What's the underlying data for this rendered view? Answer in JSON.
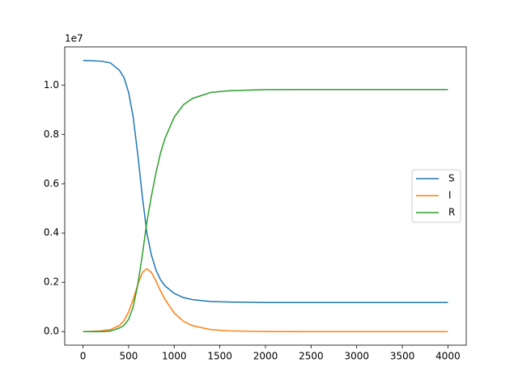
{
  "chart_data": {
    "type": "line",
    "y_offset_label": "1e7",
    "x": [
      0,
      100,
      200,
      300,
      400,
      450,
      500,
      550,
      600,
      650,
      700,
      750,
      800,
      850,
      900,
      1000,
      1100,
      1200,
      1400,
      1600,
      2000,
      2500,
      3000,
      3500,
      4000
    ],
    "series": [
      {
        "name": "S",
        "color": "#1f77b4",
        "values": [
          1.1,
          1.099,
          1.097,
          1.09,
          1.06,
          1.03,
          0.97,
          0.87,
          0.72,
          0.55,
          0.4,
          0.31,
          0.25,
          0.21,
          0.185,
          0.155,
          0.138,
          0.13,
          0.122,
          0.12,
          0.118,
          0.118,
          0.118,
          0.118,
          0.118
        ]
      },
      {
        "name": "I",
        "color": "#ff7f0e",
        "values": [
          0,
          0.001,
          0.003,
          0.008,
          0.025,
          0.045,
          0.08,
          0.13,
          0.19,
          0.24,
          0.255,
          0.24,
          0.205,
          0.165,
          0.13,
          0.075,
          0.042,
          0.024,
          0.008,
          0.003,
          0.0005,
          0,
          0,
          0,
          0
        ]
      },
      {
        "name": "R",
        "color": "#2ca02c",
        "values": [
          0,
          0,
          0,
          0.002,
          0.015,
          0.025,
          0.05,
          0.1,
          0.19,
          0.31,
          0.445,
          0.55,
          0.645,
          0.725,
          0.785,
          0.87,
          0.92,
          0.946,
          0.97,
          0.977,
          0.9815,
          0.982,
          0.982,
          0.982,
          0.982
        ]
      }
    ],
    "xlim": [
      -200,
      4200
    ],
    "ylim": [
      -0.055,
      1.155
    ],
    "xticks": [
      0,
      500,
      1000,
      1500,
      2000,
      2500,
      3000,
      3500,
      4000
    ],
    "yticks": [
      {
        "value": 0,
        "label": "0.0"
      },
      0.2,
      0.4,
      0.6,
      0.8,
      {
        "value": 1,
        "label": "1.0"
      }
    ],
    "legend": "center right"
  }
}
